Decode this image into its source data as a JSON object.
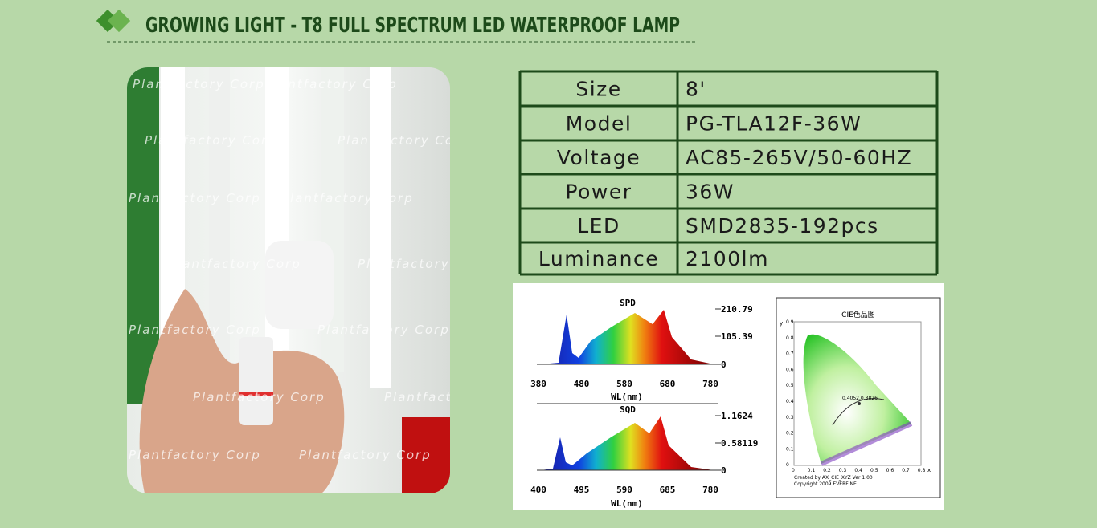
{
  "header": {
    "title": "GROWING LIGHT - T8 FULL SPECTRUM LED WATERPROOF LAMP"
  },
  "photo": {
    "watermark": "Plantfactory Corp"
  },
  "table": {
    "rows": [
      [
        "Size",
        "8'"
      ],
      [
        "Model",
        "PG-TLA12F-36W"
      ],
      [
        "Voltage",
        "AC85-265V/50-60HZ"
      ],
      [
        "Power",
        "36W"
      ],
      [
        "LED",
        "SMD2835-192pcs"
      ],
      [
        "Luminance",
        "2100lm"
      ]
    ]
  },
  "spectrum": {
    "spd": {
      "title": "SPD",
      "x_label": "WL(nm)",
      "xticks": [
        380,
        480,
        580,
        680,
        780
      ],
      "yticks": [
        210.79,
        105.39,
        0
      ]
    },
    "sqd": {
      "title": "SQD",
      "x_label": "WL(nm)",
      "xticks": [
        400,
        495,
        590,
        685,
        780
      ],
      "yticks": [
        1.1624,
        0.58119,
        0
      ]
    },
    "cie": {
      "title": "CIE色品图",
      "y_label": "y",
      "x_label": "x",
      "point": "0.4052,0.3826",
      "yticks": [
        0.9,
        0.8,
        0.7,
        0.6,
        0.5,
        0.4,
        0.3,
        0.2,
        0.1,
        0
      ],
      "xticks": [
        0,
        0.1,
        0.2,
        0.3,
        0.4,
        0.5,
        0.6,
        0.7,
        0.8
      ],
      "credit": "Created by AX_CIE_XYZ Ver 1.00",
      "copyright": "Copyright 2009 EVERFINE"
    }
  }
}
